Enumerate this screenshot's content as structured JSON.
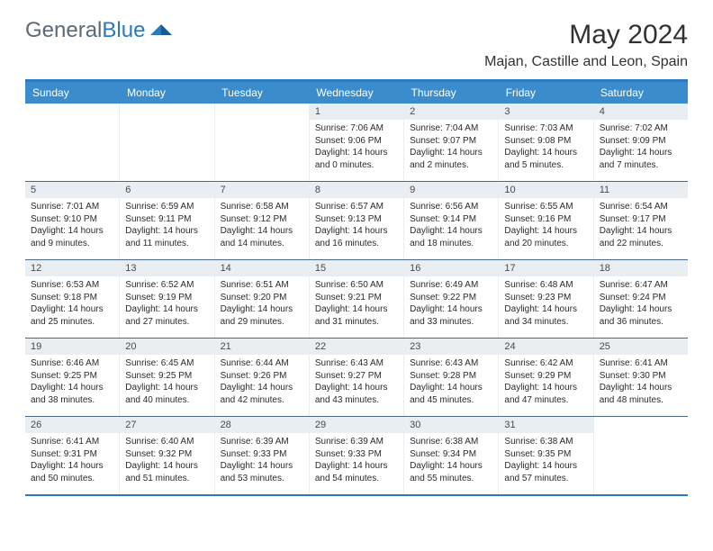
{
  "brand": {
    "name_gray": "General",
    "name_blue": "Blue"
  },
  "title": "May 2024",
  "location": "Majan, Castille and Leon, Spain",
  "colors": {
    "header_bg": "#3b8ccc",
    "accent": "#2a7ac0",
    "daynum_bg": "#e9eef3",
    "week_border": "#4b6a8a",
    "text": "#2a2a2a",
    "brand_gray": "#5a6a78",
    "brand_blue": "#2a7ac0"
  },
  "weekdays": [
    "Sunday",
    "Monday",
    "Tuesday",
    "Wednesday",
    "Thursday",
    "Friday",
    "Saturday"
  ],
  "weeks": [
    [
      {
        "n": "",
        "sr": "",
        "ss": "",
        "dl": ""
      },
      {
        "n": "",
        "sr": "",
        "ss": "",
        "dl": ""
      },
      {
        "n": "",
        "sr": "",
        "ss": "",
        "dl": ""
      },
      {
        "n": "1",
        "sr": "Sunrise: 7:06 AM",
        "ss": "Sunset: 9:06 PM",
        "dl": "Daylight: 14 hours and 0 minutes."
      },
      {
        "n": "2",
        "sr": "Sunrise: 7:04 AM",
        "ss": "Sunset: 9:07 PM",
        "dl": "Daylight: 14 hours and 2 minutes."
      },
      {
        "n": "3",
        "sr": "Sunrise: 7:03 AM",
        "ss": "Sunset: 9:08 PM",
        "dl": "Daylight: 14 hours and 5 minutes."
      },
      {
        "n": "4",
        "sr": "Sunrise: 7:02 AM",
        "ss": "Sunset: 9:09 PM",
        "dl": "Daylight: 14 hours and 7 minutes."
      }
    ],
    [
      {
        "n": "5",
        "sr": "Sunrise: 7:01 AM",
        "ss": "Sunset: 9:10 PM",
        "dl": "Daylight: 14 hours and 9 minutes."
      },
      {
        "n": "6",
        "sr": "Sunrise: 6:59 AM",
        "ss": "Sunset: 9:11 PM",
        "dl": "Daylight: 14 hours and 11 minutes."
      },
      {
        "n": "7",
        "sr": "Sunrise: 6:58 AM",
        "ss": "Sunset: 9:12 PM",
        "dl": "Daylight: 14 hours and 14 minutes."
      },
      {
        "n": "8",
        "sr": "Sunrise: 6:57 AM",
        "ss": "Sunset: 9:13 PM",
        "dl": "Daylight: 14 hours and 16 minutes."
      },
      {
        "n": "9",
        "sr": "Sunrise: 6:56 AM",
        "ss": "Sunset: 9:14 PM",
        "dl": "Daylight: 14 hours and 18 minutes."
      },
      {
        "n": "10",
        "sr": "Sunrise: 6:55 AM",
        "ss": "Sunset: 9:16 PM",
        "dl": "Daylight: 14 hours and 20 minutes."
      },
      {
        "n": "11",
        "sr": "Sunrise: 6:54 AM",
        "ss": "Sunset: 9:17 PM",
        "dl": "Daylight: 14 hours and 22 minutes."
      }
    ],
    [
      {
        "n": "12",
        "sr": "Sunrise: 6:53 AM",
        "ss": "Sunset: 9:18 PM",
        "dl": "Daylight: 14 hours and 25 minutes."
      },
      {
        "n": "13",
        "sr": "Sunrise: 6:52 AM",
        "ss": "Sunset: 9:19 PM",
        "dl": "Daylight: 14 hours and 27 minutes."
      },
      {
        "n": "14",
        "sr": "Sunrise: 6:51 AM",
        "ss": "Sunset: 9:20 PM",
        "dl": "Daylight: 14 hours and 29 minutes."
      },
      {
        "n": "15",
        "sr": "Sunrise: 6:50 AM",
        "ss": "Sunset: 9:21 PM",
        "dl": "Daylight: 14 hours and 31 minutes."
      },
      {
        "n": "16",
        "sr": "Sunrise: 6:49 AM",
        "ss": "Sunset: 9:22 PM",
        "dl": "Daylight: 14 hours and 33 minutes."
      },
      {
        "n": "17",
        "sr": "Sunrise: 6:48 AM",
        "ss": "Sunset: 9:23 PM",
        "dl": "Daylight: 14 hours and 34 minutes."
      },
      {
        "n": "18",
        "sr": "Sunrise: 6:47 AM",
        "ss": "Sunset: 9:24 PM",
        "dl": "Daylight: 14 hours and 36 minutes."
      }
    ],
    [
      {
        "n": "19",
        "sr": "Sunrise: 6:46 AM",
        "ss": "Sunset: 9:25 PM",
        "dl": "Daylight: 14 hours and 38 minutes."
      },
      {
        "n": "20",
        "sr": "Sunrise: 6:45 AM",
        "ss": "Sunset: 9:25 PM",
        "dl": "Daylight: 14 hours and 40 minutes."
      },
      {
        "n": "21",
        "sr": "Sunrise: 6:44 AM",
        "ss": "Sunset: 9:26 PM",
        "dl": "Daylight: 14 hours and 42 minutes."
      },
      {
        "n": "22",
        "sr": "Sunrise: 6:43 AM",
        "ss": "Sunset: 9:27 PM",
        "dl": "Daylight: 14 hours and 43 minutes."
      },
      {
        "n": "23",
        "sr": "Sunrise: 6:43 AM",
        "ss": "Sunset: 9:28 PM",
        "dl": "Daylight: 14 hours and 45 minutes."
      },
      {
        "n": "24",
        "sr": "Sunrise: 6:42 AM",
        "ss": "Sunset: 9:29 PM",
        "dl": "Daylight: 14 hours and 47 minutes."
      },
      {
        "n": "25",
        "sr": "Sunrise: 6:41 AM",
        "ss": "Sunset: 9:30 PM",
        "dl": "Daylight: 14 hours and 48 minutes."
      }
    ],
    [
      {
        "n": "26",
        "sr": "Sunrise: 6:41 AM",
        "ss": "Sunset: 9:31 PM",
        "dl": "Daylight: 14 hours and 50 minutes."
      },
      {
        "n": "27",
        "sr": "Sunrise: 6:40 AM",
        "ss": "Sunset: 9:32 PM",
        "dl": "Daylight: 14 hours and 51 minutes."
      },
      {
        "n": "28",
        "sr": "Sunrise: 6:39 AM",
        "ss": "Sunset: 9:33 PM",
        "dl": "Daylight: 14 hours and 53 minutes."
      },
      {
        "n": "29",
        "sr": "Sunrise: 6:39 AM",
        "ss": "Sunset: 9:33 PM",
        "dl": "Daylight: 14 hours and 54 minutes."
      },
      {
        "n": "30",
        "sr": "Sunrise: 6:38 AM",
        "ss": "Sunset: 9:34 PM",
        "dl": "Daylight: 14 hours and 55 minutes."
      },
      {
        "n": "31",
        "sr": "Sunrise: 6:38 AM",
        "ss": "Sunset: 9:35 PM",
        "dl": "Daylight: 14 hours and 57 minutes."
      },
      {
        "n": "",
        "sr": "",
        "ss": "",
        "dl": ""
      }
    ]
  ]
}
